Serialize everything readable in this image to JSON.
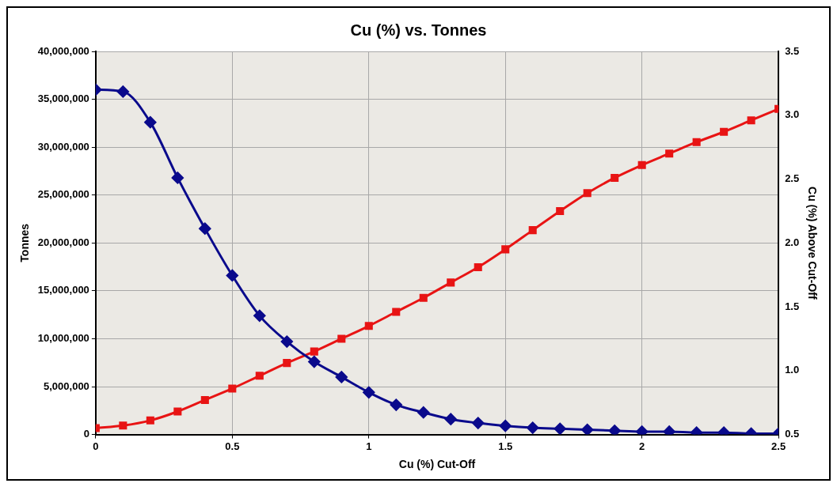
{
  "chart_data": {
    "type": "line",
    "title": "Cu (%) vs. Tonnes",
    "xlabel": "Cu (%) Cut-Off",
    "ylabel": "Tonnes",
    "y2label": "Cu (%) Above Cut-Off",
    "x": [
      0,
      0.1,
      0.2,
      0.3,
      0.4,
      0.5,
      0.6,
      0.7,
      0.8,
      0.9,
      1.0,
      1.1,
      1.2,
      1.3,
      1.4,
      1.5,
      1.6,
      1.7,
      1.8,
      1.9,
      2.0,
      2.1,
      2.2,
      2.3,
      2.4,
      2.5
    ],
    "series": [
      {
        "color": "#0a0a8c",
        "marker": "diamond",
        "values": [
          36000000,
          35800000,
          32600000,
          26800000,
          21500000,
          16600000,
          12400000,
          9700000,
          7600000,
          6000000,
          4400000,
          3100000,
          2300000,
          1600000,
          1200000,
          900000,
          700000,
          600000,
          500000,
          400000,
          300000,
          300000,
          200000,
          200000,
          100000,
          100000
        ]
      },
      {
        "color": "#e81414",
        "marker": "square",
        "axis": "y2",
        "values": [
          0.55,
          0.57,
          0.61,
          0.68,
          0.77,
          0.86,
          0.96,
          1.06,
          1.15,
          1.25,
          1.35,
          1.46,
          1.57,
          1.69,
          1.81,
          1.95,
          2.1,
          2.25,
          2.39,
          2.51,
          2.61,
          2.7,
          2.79,
          2.87,
          2.96,
          3.05
        ]
      }
    ],
    "xlim": [
      0,
      2.5
    ],
    "xticks": [
      0,
      0.5,
      1,
      1.5,
      2,
      2.5
    ],
    "ylim": [
      0,
      40000000
    ],
    "yticks": [
      0,
      {
        "value": 5000000,
        "label": "5,000,000"
      },
      {
        "value": 10000000,
        "label": "10,000,000"
      },
      {
        "value": 15000000,
        "label": "15,000,000"
      },
      {
        "value": 20000000,
        "label": "20,000,000"
      },
      {
        "value": 25000000,
        "label": "25,000,000"
      },
      {
        "value": 30000000,
        "label": "30,000,000"
      },
      {
        "value": 35000000,
        "label": "35,000,000"
      },
      {
        "value": 40000000,
        "label": "40,000,000"
      }
    ],
    "y2lim": [
      0.5,
      3.5
    ],
    "y2ticks": [
      0.5,
      {
        "value": 1,
        "label": "1.0"
      },
      1.5,
      {
        "value": 2,
        "label": "2.0"
      },
      2.5,
      {
        "value": 3,
        "label": "3.0"
      },
      3.5
    ],
    "grid": true,
    "legend": false
  }
}
